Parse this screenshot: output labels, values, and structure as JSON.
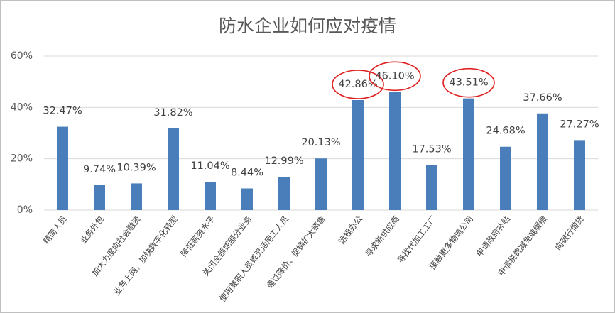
{
  "chart_data": {
    "type": "bar",
    "title": "防水企业如何应对疫情",
    "categories": [
      "精简人员",
      "业务外包",
      "加大力度向社会融资",
      "业务上网，加快数字化转型",
      "降低薪资水平",
      "关闭全部或部分业务",
      "使用兼职人员或灵活用工人员",
      "通过降价、促销扩大销售",
      "远程办公",
      "寻求新供应商",
      "寻找代加工工厂",
      "接触更多物流公司",
      "申请政府补贴",
      "申请税费减免或缓缴",
      "向银行借贷"
    ],
    "values": [
      32.47,
      9.74,
      10.39,
      31.82,
      11.04,
      8.44,
      12.99,
      20.13,
      42.86,
      46.1,
      17.53,
      43.51,
      24.68,
      37.66,
      27.27
    ],
    "value_labels": [
      "32.47%",
      "9.74%",
      "10.39%",
      "31.82%",
      "11.04%",
      "8.44%",
      "12.99%",
      "20.13%",
      "42.86%",
      "46.10%",
      "17.53%",
      "43.51%",
      "24.68%",
      "37.66%",
      "27.27%"
    ],
    "color": "#4a7ebb",
    "highlighted": [
      8,
      9,
      11
    ],
    "highlight_color": "#e02020",
    "ylim": [
      0,
      60
    ],
    "yticks": [
      {
        "value": 0,
        "label": "0%"
      },
      {
        "value": 20,
        "label": "20%"
      },
      {
        "value": 40,
        "label": "40%"
      },
      {
        "value": 60,
        "label": "60%"
      }
    ],
    "grid": true
  }
}
